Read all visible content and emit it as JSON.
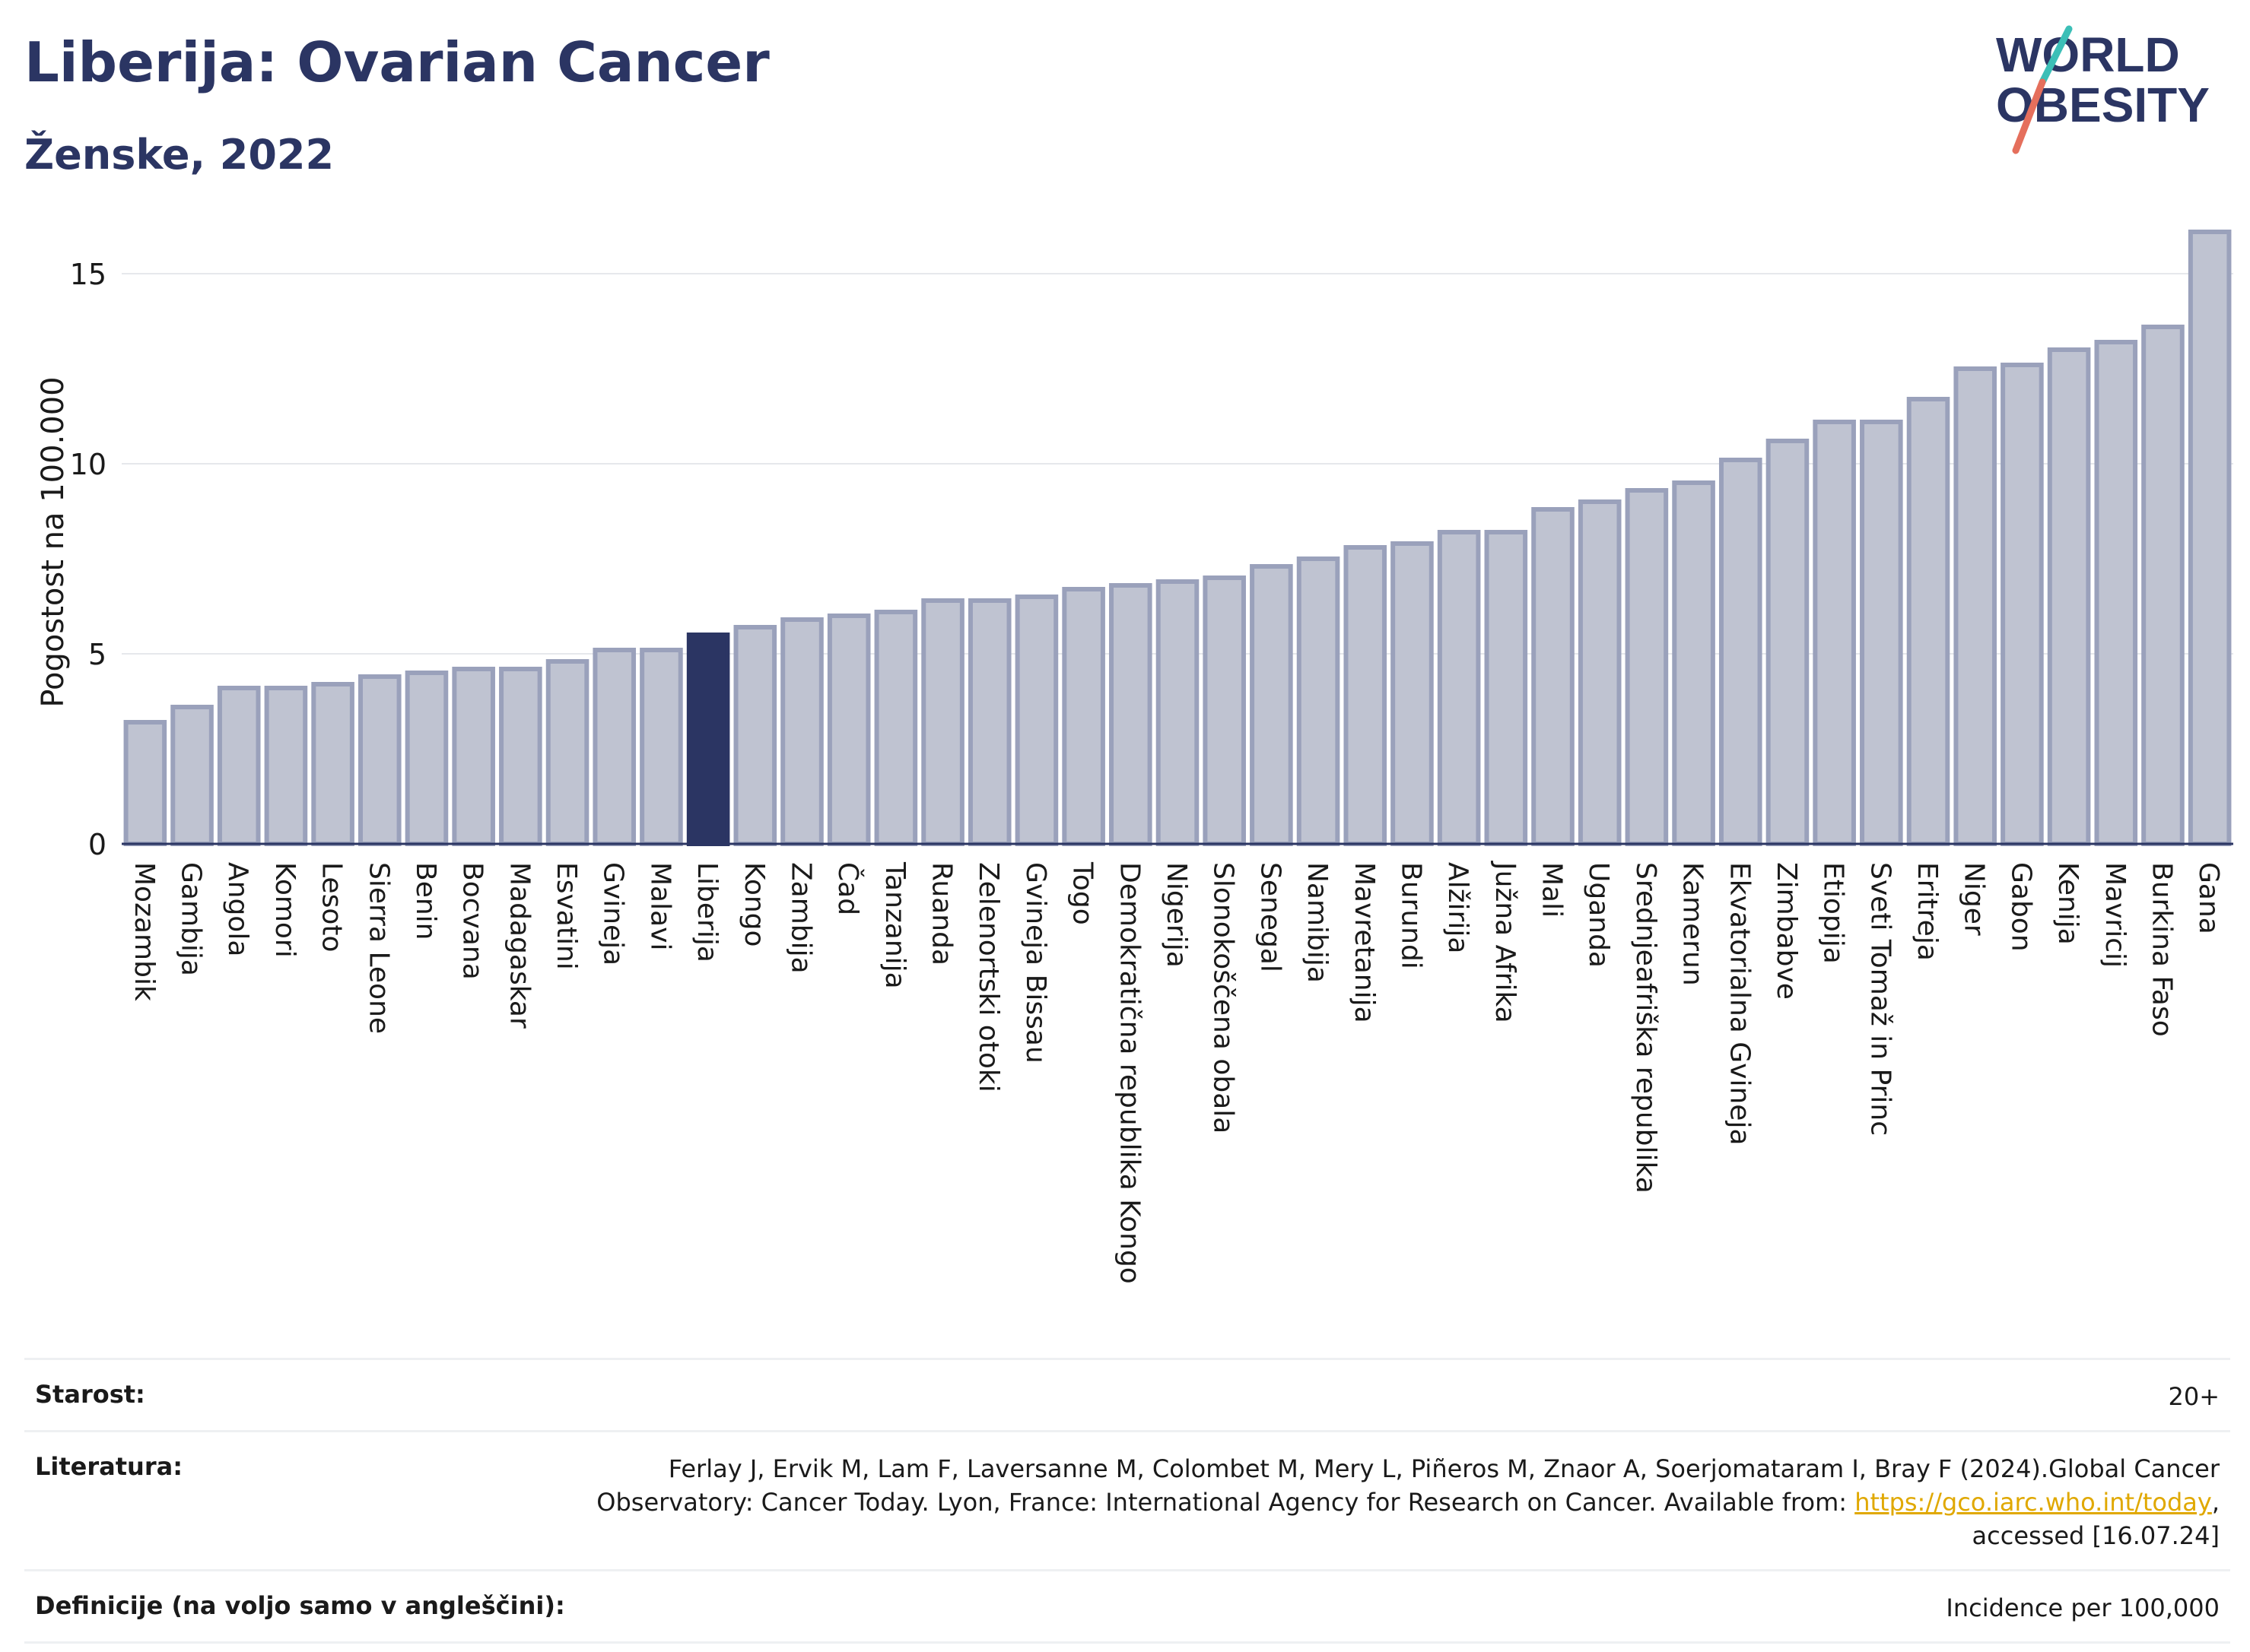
{
  "header": {
    "title": "Liberija: Ovarian Cancer",
    "subtitle": "Ženske, 2022",
    "logo_line1": "WORLD",
    "logo_line2": "OBESITY"
  },
  "chart_data": {
    "type": "bar",
    "ylabel": "Pogostost na 100.000",
    "xlabel": "",
    "ylim": [
      0,
      16.5
    ],
    "yticks": [
      0,
      5,
      10,
      15
    ],
    "grid": true,
    "highlight": "Liberija",
    "colors": {
      "bar": "#bfc3d1",
      "bar_edge": "#9aa1bb",
      "highlight": "#2b3563"
    },
    "categories": [
      "Mozambik",
      "Gambija",
      "Angola",
      "Komori",
      "Lesoto",
      "Sierra Leone",
      "Benin",
      "Bocvana",
      "Madagaskar",
      "Esvatini",
      "Gvineja",
      "Malavi",
      "Liberija",
      "Kongo",
      "Zambija",
      "Čad",
      "Tanzanija",
      "Ruanda",
      "Zelenortski otoki",
      "Gvineja Bissau",
      "Togo",
      "Demokratična republika Kongo",
      "Nigerija",
      "Slonokoščena obala",
      "Senegal",
      "Namibija",
      "Mavretanija",
      "Burundi",
      "Alžirija",
      "Južna Afrika",
      "Mali",
      "Uganda",
      "Srednjeafriška republika",
      "Kamerun",
      "Ekvatorialna Gvineja",
      "Zimbabve",
      "Etiopija",
      "Sveti Tomaž in Princ",
      "Eritreja",
      "Niger",
      "Gabon",
      "Kenija",
      "Mavricij",
      "Burkina Faso",
      "Gana"
    ],
    "values": [
      3.2,
      3.6,
      4.1,
      4.1,
      4.2,
      4.4,
      4.5,
      4.6,
      4.6,
      4.8,
      5.1,
      5.1,
      5.5,
      5.7,
      5.9,
      6.0,
      6.1,
      6.4,
      6.4,
      6.5,
      6.7,
      6.8,
      6.9,
      7.0,
      7.3,
      7.5,
      7.8,
      7.9,
      8.2,
      8.2,
      8.8,
      9.0,
      9.3,
      9.5,
      10.1,
      10.6,
      11.1,
      11.1,
      11.7,
      12.5,
      12.6,
      13.0,
      13.2,
      13.6,
      16.1
    ]
  },
  "info": {
    "age_label": "Starost:",
    "age_value": "20+",
    "lit_label": "Literatura:",
    "lit_text1": "Ferlay J, Ervik M, Lam F, Laversanne M, Colombet M, Mery L, Piñeros M, Znaor A, Soerjomataram I, Bray F (2024).Global Cancer",
    "lit_text2": "Observatory: Cancer Today. Lyon, France: International Agency for Research on Cancer. Available from: ",
    "lit_link": "https://gco.iarc.who.int/today",
    "lit_text3": ",",
    "lit_text4": "accessed [16.07.24]",
    "def_label": "Definicije (na voljo samo v angleščini):",
    "def_value": "Incidence per 100,000"
  }
}
